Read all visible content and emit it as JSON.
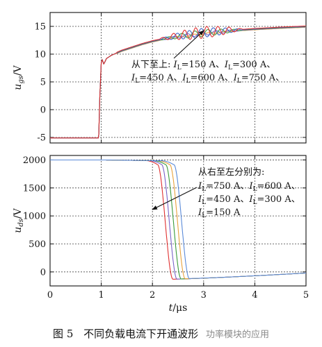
{
  "chart_data": [
    {
      "type": "line",
      "ylabel": "u_gs/V",
      "ylabel_main": "u",
      "ylabel_sub": "gs",
      "ylabel_unit": "/V",
      "ylim": [
        -6,
        17.5
      ],
      "yticks": [
        -5,
        0,
        5,
        10,
        15
      ],
      "xlim": [
        0,
        5
      ],
      "grid": true,
      "series": [
        {
          "name": "I_L=150 A",
          "color": "#e8a23c"
        },
        {
          "name": "I_L=300 A",
          "color": "#7a63c8"
        },
        {
          "name": "I_L=450 A",
          "color": "#3a9a3a"
        },
        {
          "name": "I_L=600 A",
          "color": "#3f66c8"
        },
        {
          "name": "I_L=750 A",
          "color": "#e03030"
        }
      ],
      "points": {
        "x": [
          0,
          0.95,
          0.97,
          1.0,
          1.02,
          1.05,
          1.1,
          1.2,
          1.4,
          1.6,
          1.8,
          2.0,
          2.2,
          2.5,
          3.0,
          3.5,
          4.0,
          4.5,
          5.0
        ],
        "y": [
          -5.1,
          -5.1,
          2.0,
          8.5,
          9.0,
          8.2,
          9.2,
          9.8,
          10.6,
          11.2,
          11.8,
          12.3,
          12.7,
          13.2,
          13.8,
          14.2,
          14.5,
          14.75,
          14.95
        ]
      },
      "annotation": {
        "line1_prefix": "从下至上: ",
        "i1": "=150 A、",
        "i2": "=300 A、",
        "i3": "=450 A、",
        "i4": "=600 A、",
        "i5": "=750 A、",
        "I": "I",
        "L": "L"
      }
    },
    {
      "type": "line",
      "xlabel": "t/μs",
      "xlabel_main": "t",
      "xlabel_unit": "/μs",
      "ylabel": "u_ds/V",
      "ylabel_main": "u",
      "ylabel_sub": "ds",
      "ylabel_unit": "/V",
      "ylim": [
        -250,
        2080
      ],
      "yticks": [
        0,
        500,
        1000,
        1500,
        2000
      ],
      "xlim": [
        0,
        5
      ],
      "xticks": [
        0,
        1,
        2,
        3,
        4,
        5
      ],
      "grid": true,
      "series": [
        {
          "name": "I_L=750 A",
          "color": "#e03030",
          "fall_start": 2.1,
          "fall_end": 2.4,
          "min": -130
        },
        {
          "name": "I_L=600 A",
          "color": "#7a63c8",
          "fall_start": 2.18,
          "fall_end": 2.48,
          "min": -128
        },
        {
          "name": "I_L=450 A",
          "color": "#3a9a3a",
          "fall_start": 2.26,
          "fall_end": 2.56,
          "min": -125
        },
        {
          "name": "I_L=300 A",
          "color": "#e8a23c",
          "fall_start": 2.34,
          "fall_end": 2.64,
          "min": -122
        },
        {
          "name": "I_L=150 A",
          "color": "#5a8ad8",
          "fall_start": 2.42,
          "fall_end": 2.72,
          "min": -118
        }
      ],
      "annotation": {
        "line1": "从右至左分别为:",
        "i1": "=750 A、",
        "i2": "=600 A、",
        "i3": "=450 A、",
        "i4": "=300 A、",
        "i5": "=150 A",
        "I": "I",
        "L": "L"
      }
    }
  ],
  "caption": {
    "prefix": "图 5",
    "text": "不同负载电流下开通波形",
    "watermark": "功率模块的应用"
  }
}
